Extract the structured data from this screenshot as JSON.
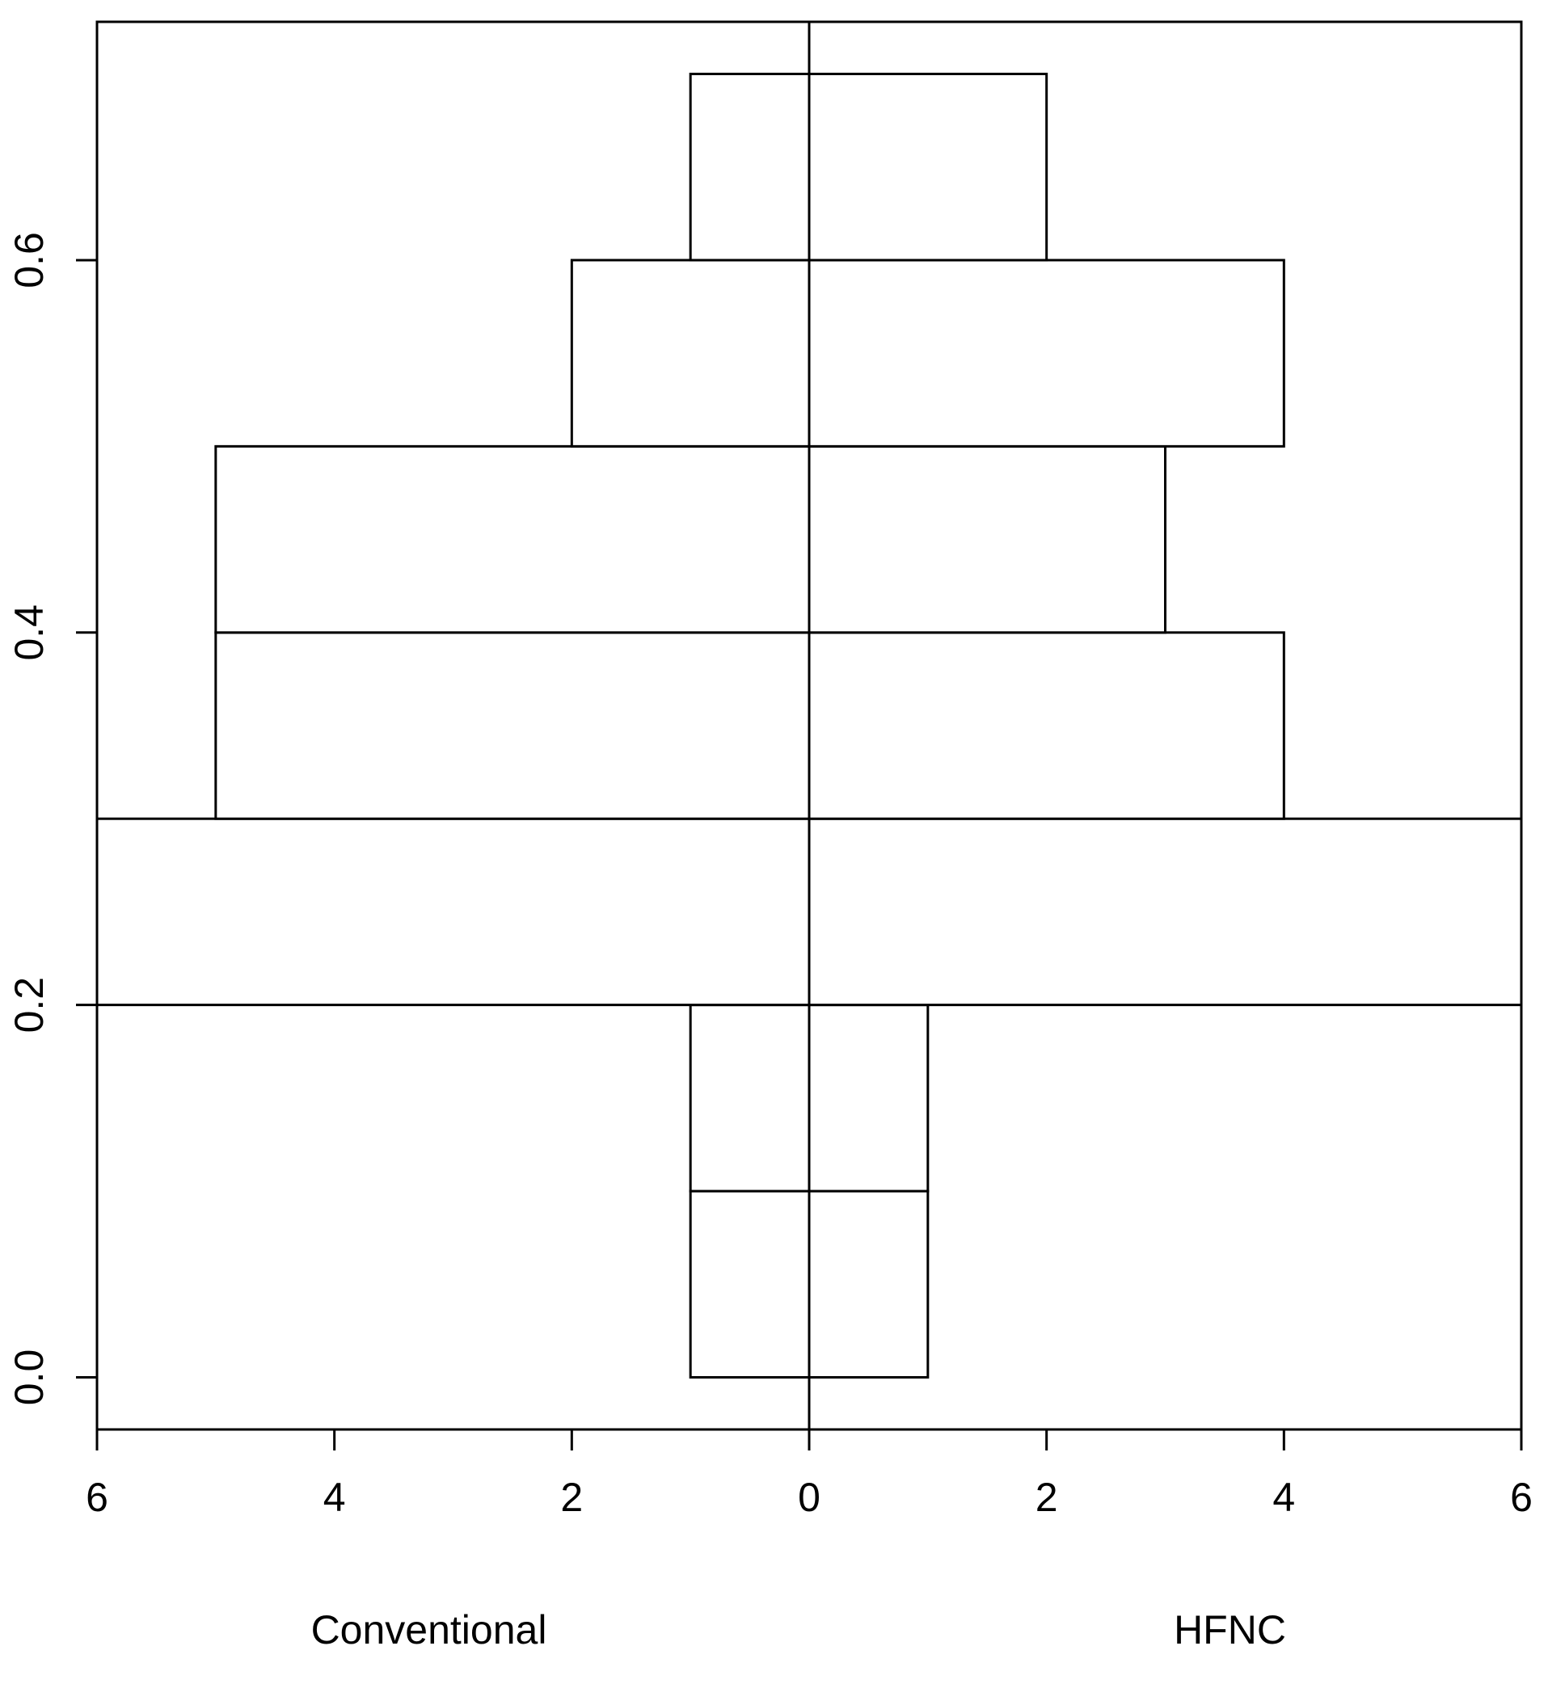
{
  "chart_data": {
    "type": "histogram",
    "bins": [
      0,
      0.1,
      0.2,
      0.3,
      0.4,
      0.5,
      0.6,
      0.7
    ],
    "series": [
      {
        "name": "Conventional",
        "color": "#ffffff",
        "side": "left",
        "values": [
          1,
          1,
          6,
          5,
          5,
          2,
          1
        ]
      },
      {
        "name": "HFNC",
        "color": "#ffffff",
        "side": "right",
        "values": [
          1,
          1,
          6,
          4,
          3,
          4,
          2
        ]
      }
    ],
    "xlim": [
      -6,
      6
    ],
    "xticks": [
      {
        "value": -6,
        "label": "6"
      },
      {
        "value": -4,
        "label": "4"
      },
      {
        "value": -2,
        "label": "2"
      },
      0,
      2,
      4,
      6
    ],
    "ylim": [
      -0.028,
      0.728
    ],
    "yticks": [
      {
        "value": 0,
        "label": "0.0"
      },
      0.2,
      0.4,
      0.6
    ]
  }
}
